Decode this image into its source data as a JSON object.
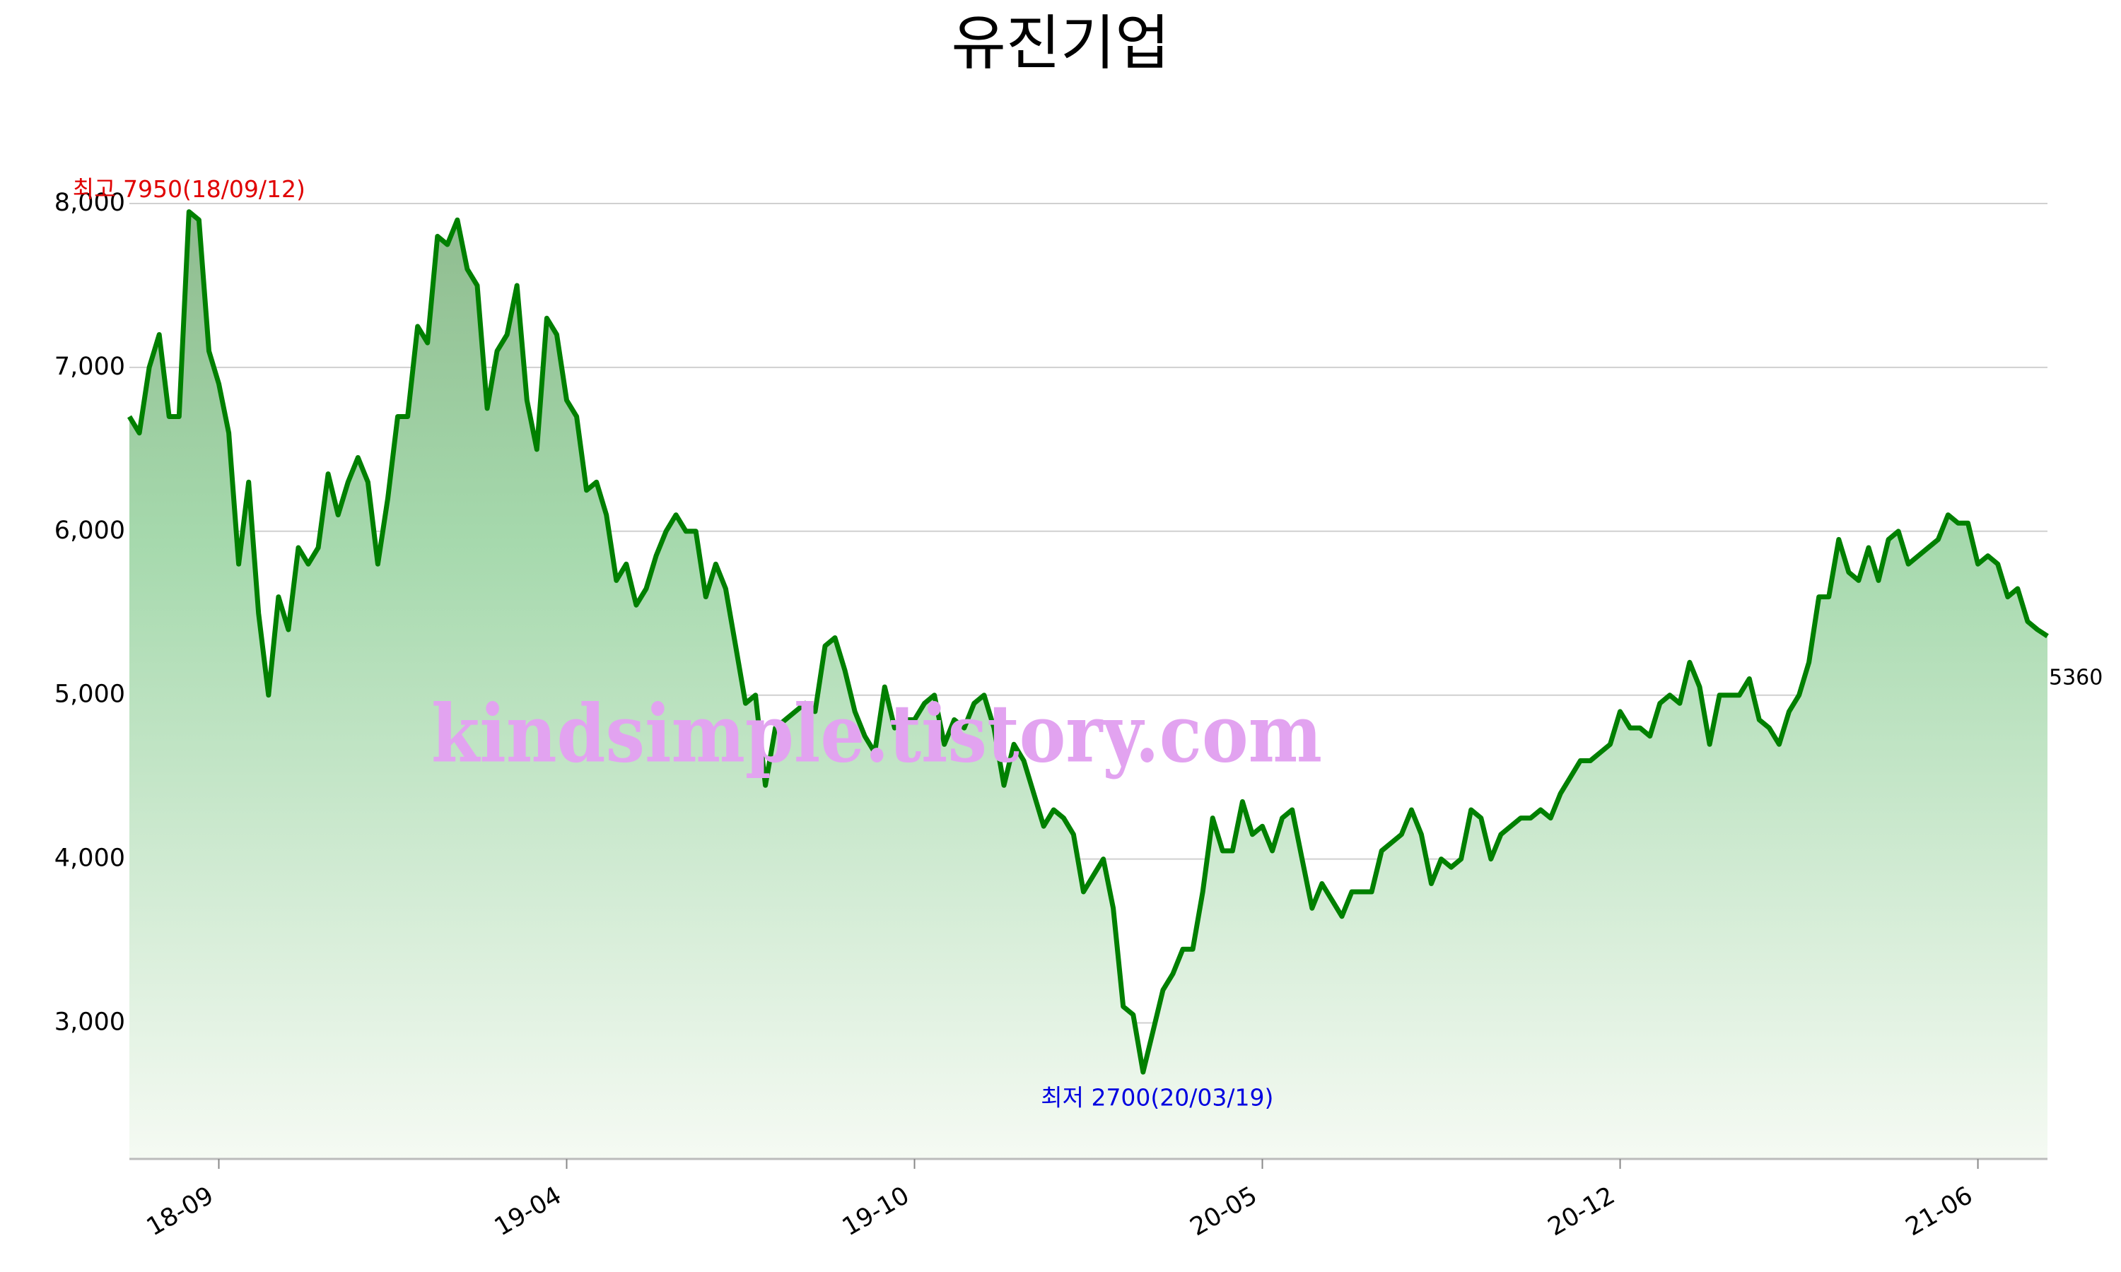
{
  "chart_data": {
    "type": "area-line",
    "title": "유진기업",
    "watermark": "kindsimple.tistory.com",
    "color": "#008000",
    "grid": true,
    "annotations": {
      "max": "최고 7950(18/09/12)",
      "min": "최저 2700(20/03/19)"
    },
    "ylim": [
      2170,
      8000
    ],
    "yticks": [
      {
        "value": 3000,
        "label": "3,000"
      },
      {
        "value": 4000,
        "label": "4,000"
      },
      {
        "value": 5000,
        "label": "5,000"
      },
      {
        "value": 6000,
        "label": "6,000"
      },
      {
        "value": 7000,
        "label": "7,000"
      },
      {
        "value": 8000,
        "label": "8,000"
      }
    ],
    "categories": [
      null,
      null,
      null,
      null,
      null,
      null,
      null,
      null,
      null,
      "18-09",
      null,
      null,
      null,
      null,
      null,
      null,
      null,
      null,
      null,
      null,
      null,
      null,
      null,
      null,
      null,
      null,
      null,
      null,
      null,
      null,
      null,
      null,
      null,
      null,
      null,
      null,
      null,
      null,
      null,
      null,
      null,
      null,
      null,
      null,
      "19-04",
      null,
      null,
      null,
      null,
      null,
      null,
      null,
      null,
      null,
      null,
      null,
      null,
      null,
      null,
      null,
      null,
      null,
      null,
      null,
      null,
      null,
      null,
      null,
      null,
      null,
      null,
      null,
      null,
      null,
      null,
      null,
      null,
      null,
      null,
      "19-10",
      null,
      null,
      null,
      null,
      null,
      null,
      null,
      null,
      null,
      null,
      null,
      null,
      null,
      null,
      null,
      null,
      null,
      null,
      null,
      null,
      null,
      null,
      null,
      null,
      null,
      null,
      null,
      null,
      null,
      null,
      null,
      null,
      null,
      null,
      "20-05",
      null,
      null,
      null,
      null,
      null,
      null,
      null,
      null,
      null,
      null,
      null,
      null,
      null,
      null,
      null,
      null,
      null,
      null,
      null,
      null,
      null,
      null,
      null,
      null,
      null,
      null,
      null,
      null,
      null,
      null,
      null,
      null,
      null,
      null,
      null,
      "20-12",
      null,
      null,
      null,
      null,
      null,
      null,
      null,
      null,
      null,
      null,
      null,
      null,
      null,
      null,
      null,
      null,
      null,
      null,
      null,
      null,
      null,
      null,
      null,
      null,
      null,
      null,
      null,
      null,
      null,
      null,
      null,
      null,
      null,
      null,
      null,
      "21-06",
      null,
      null,
      null,
      null,
      null,
      null,
      null
    ],
    "values": [
      6700,
      6600,
      7000,
      7200,
      6700,
      6700,
      7950,
      7900,
      7100,
      6900,
      6600,
      5800,
      6300,
      5500,
      5000,
      5600,
      5400,
      5900,
      5800,
      5900,
      6350,
      6100,
      6300,
      6450,
      6300,
      5800,
      6200,
      6700,
      6700,
      7250,
      7150,
      7800,
      7750,
      7900,
      7600,
      7500,
      6750,
      7100,
      7200,
      7500,
      6800,
      6500,
      7300,
      7200,
      6800,
      6700,
      6250,
      6300,
      6100,
      5700,
      5800,
      5550,
      5650,
      5850,
      6000,
      6100,
      6000,
      6000,
      5600,
      5800,
      5650,
      5300,
      4950,
      5000,
      4450,
      4800,
      4850,
      4900,
      4950,
      4900,
      5300,
      5350,
      5150,
      4900,
      4750,
      4650,
      5050,
      4800,
      4850,
      4850,
      4950,
      5000,
      4700,
      4850,
      4800,
      4950,
      5000,
      4800,
      4450,
      4700,
      4600,
      4400,
      4200,
      4300,
      4250,
      4150,
      3800,
      3900,
      4000,
      3700,
      3100,
      3050,
      2700,
      2950,
      3200,
      3300,
      3450,
      3450,
      3800,
      4250,
      4050,
      4050,
      4350,
      4150,
      4200,
      4050,
      4250,
      4300,
      4000,
      3700,
      3850,
      3750,
      3650,
      3800,
      3800,
      3800,
      4050,
      4100,
      4150,
      4300,
      4150,
      3850,
      4000,
      3950,
      4000,
      4300,
      4250,
      4000,
      4150,
      4200,
      4250,
      4250,
      4300,
      4250,
      4400,
      4500,
      4600,
      4600,
      4650,
      4700,
      4900,
      4800,
      4800,
      4750,
      4950,
      5000,
      4950,
      5200,
      5050,
      4700,
      5000,
      5000,
      5000,
      5100,
      4850,
      4800,
      4700,
      4900,
      5000,
      5200,
      5600,
      5600,
      5950,
      5750,
      5700,
      5900,
      5700,
      5950,
      6000,
      5800,
      5850,
      5900,
      5950,
      6100,
      6050,
      6050,
      5800,
      5850,
      5800,
      5600,
      5650,
      5450,
      5400,
      5360
    ]
  }
}
